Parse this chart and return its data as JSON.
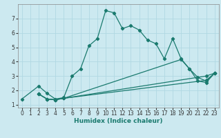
{
  "xlabel": "Humidex (Indice chaleur)",
  "ylabel": "",
  "bg_color": "#cce9f0",
  "grid_color": "#b0d8e2",
  "line_color": "#1a7a6e",
  "xlim": [
    -0.5,
    23.5
  ],
  "ylim": [
    0.8,
    8.0
  ],
  "xticks": [
    0,
    1,
    2,
    3,
    4,
    5,
    6,
    7,
    8,
    9,
    10,
    11,
    12,
    13,
    14,
    15,
    16,
    17,
    18,
    19,
    20,
    21,
    22,
    23
  ],
  "yticks": [
    1,
    2,
    3,
    4,
    5,
    6,
    7
  ],
  "line1_x": [
    0,
    2,
    3,
    4,
    5,
    6,
    7,
    8,
    9,
    10,
    11,
    12,
    13,
    14,
    15,
    16,
    17,
    18,
    19,
    20,
    21,
    22,
    23
  ],
  "line1_y": [
    1.4,
    2.3,
    1.8,
    1.4,
    1.5,
    3.0,
    3.5,
    5.1,
    5.6,
    7.55,
    7.4,
    6.3,
    6.5,
    6.2,
    5.5,
    5.25,
    4.2,
    5.6,
    4.2,
    3.5,
    2.9,
    2.65,
    3.2
  ],
  "line2_x": [
    2,
    3,
    4,
    5,
    22,
    23
  ],
  "line2_y": [
    1.75,
    1.4,
    1.35,
    1.45,
    2.7,
    3.2
  ],
  "line3_x": [
    2,
    3,
    4,
    5,
    19,
    20,
    21,
    22,
    23
  ],
  "line3_y": [
    1.75,
    1.4,
    1.35,
    1.45,
    4.15,
    3.5,
    2.65,
    2.55,
    3.2
  ],
  "line4_x": [
    2,
    3,
    4,
    5,
    22,
    23
  ],
  "line4_y": [
    1.75,
    1.4,
    1.35,
    1.45,
    3.0,
    3.2
  ]
}
